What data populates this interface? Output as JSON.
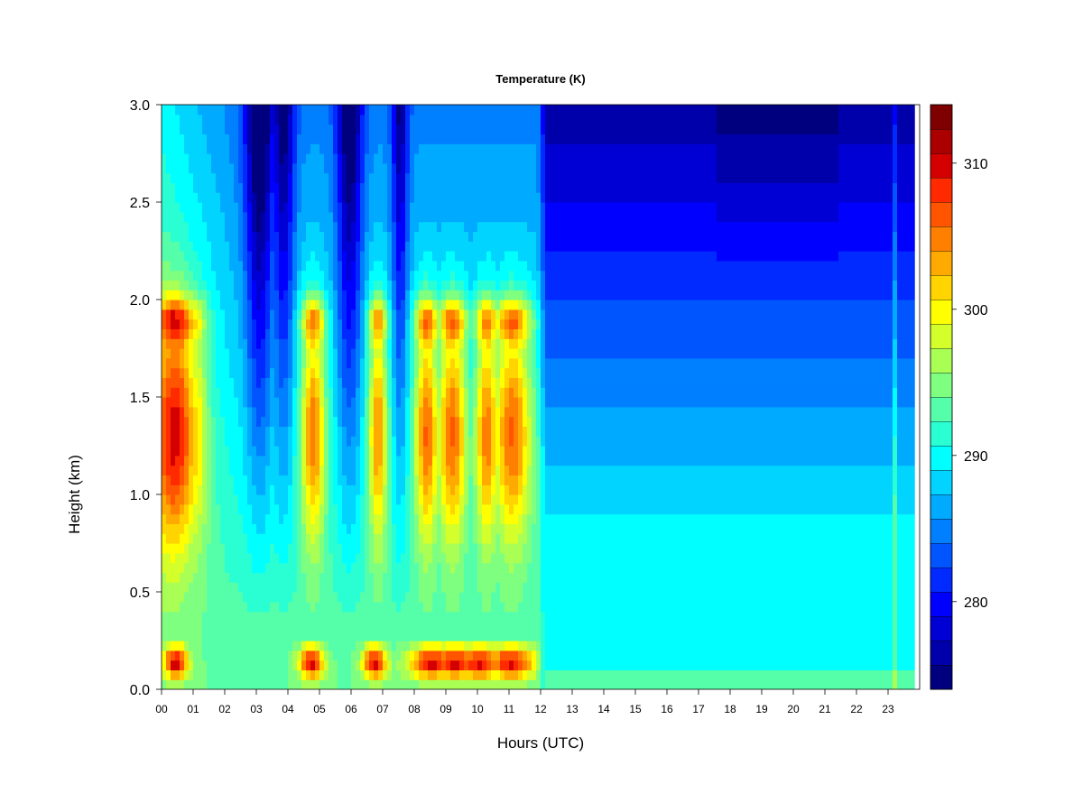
{
  "chart_data": {
    "type": "heatmap",
    "title": "Temperature (K)",
    "xlabel": "Hours (UTC)",
    "ylabel": "Height (km)",
    "xlim": [
      0,
      24
    ],
    "ylim": [
      0,
      3
    ],
    "x_ticks": [
      "00",
      "01",
      "02",
      "03",
      "04",
      "05",
      "06",
      "07",
      "08",
      "09",
      "10",
      "11",
      "12",
      "13",
      "14",
      "15",
      "16",
      "17",
      "18",
      "19",
      "20",
      "21",
      "22",
      "23"
    ],
    "y_ticks": [
      "0.0",
      "0.5",
      "1.0",
      "1.5",
      "2.0",
      "2.5",
      "3.0"
    ],
    "colorbar": {
      "range": [
        274,
        314
      ],
      "ticks": [
        280,
        290,
        300,
        310
      ],
      "colors": [
        "#00007F",
        "#0000AA",
        "#0000D4",
        "#0000FF",
        "#002AFF",
        "#0055FF",
        "#007FFF",
        "#00AAFF",
        "#00D4FF",
        "#00FFFF",
        "#2AFFD4",
        "#55FFAA",
        "#7FFF7F",
        "#AAFF55",
        "#D4FF2A",
        "#FFFF00",
        "#FFD400",
        "#FFAA00",
        "#FF7F00",
        "#FF5500",
        "#FF2A00",
        "#D40000",
        "#AA0000",
        "#7F0000"
      ]
    }
  }
}
